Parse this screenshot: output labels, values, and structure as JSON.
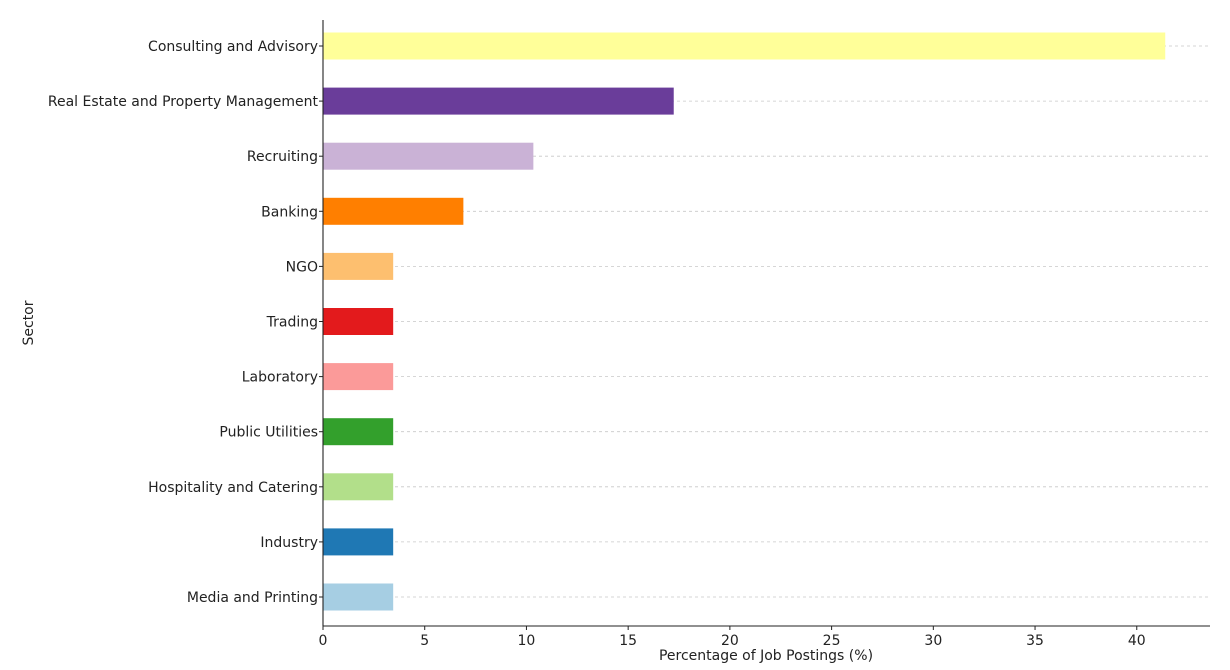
{
  "chart_data": {
    "type": "bar",
    "orientation": "horizontal",
    "title": "",
    "xlabel": "Percentage of Job Postings (%)",
    "ylabel": "Sector",
    "xlim": [
      0,
      43.6
    ],
    "xticks": [
      0,
      5,
      10,
      15,
      20,
      25,
      30,
      35,
      40
    ],
    "grid": "horizontal-dashed",
    "legend": "none",
    "categories": [
      "Consulting and Advisory",
      "Real Estate and Property Management",
      "Recruiting",
      "Banking",
      "NGO",
      "Trading",
      "Laboratory",
      "Public Utilities",
      "Hospitality and Catering",
      "Industry",
      "Media and Printing"
    ],
    "values": [
      41.4,
      17.24,
      10.34,
      6.9,
      3.45,
      3.45,
      3.45,
      3.45,
      3.45,
      3.45,
      3.45
    ],
    "colors": [
      "#ffff99",
      "#6a3d9a",
      "#cab2d6",
      "#ff7f00",
      "#fdbf6f",
      "#e31a1c",
      "#fb9a99",
      "#33a02c",
      "#b2df8a",
      "#1f78b4",
      "#a6cee3"
    ]
  }
}
